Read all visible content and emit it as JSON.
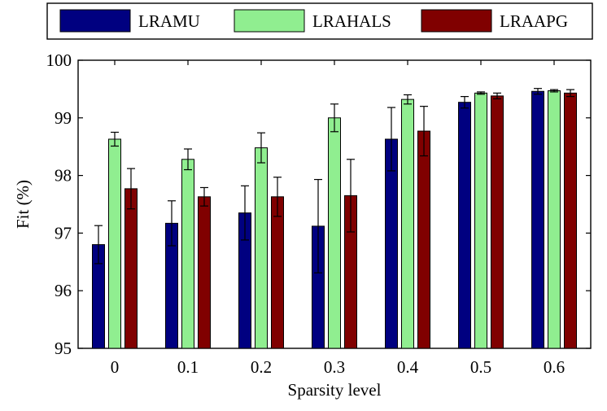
{
  "chart_data": {
    "type": "bar",
    "title": "",
    "xlabel": "Sparsity level",
    "ylabel": "Fit (%)",
    "ylim": [
      95,
      100
    ],
    "yticks": [
      "95",
      "96",
      "97",
      "98",
      "99",
      "100"
    ],
    "categories": [
      "0",
      "0.1",
      "0.2",
      "0.3",
      "0.4",
      "0.5",
      "0.6"
    ],
    "grid": false,
    "legend_position": "top",
    "series": [
      {
        "name": "LRAMU",
        "color": "#000080",
        "values": [
          96.8,
          97.17,
          97.35,
          97.12,
          98.63,
          99.27,
          99.46
        ],
        "errors": [
          0.33,
          0.39,
          0.47,
          0.81,
          0.55,
          0.1,
          0.05
        ]
      },
      {
        "name": "LRAHALS",
        "color": "#90ee90",
        "values": [
          98.63,
          98.28,
          98.48,
          99.0,
          99.32,
          99.43,
          99.47
        ],
        "errors": [
          0.12,
          0.18,
          0.26,
          0.24,
          0.08,
          0.02,
          0.02
        ]
      },
      {
        "name": "LRAAPG",
        "color": "#800000",
        "values": [
          97.77,
          97.63,
          97.63,
          97.65,
          98.77,
          99.38,
          99.43
        ],
        "errors": [
          0.35,
          0.16,
          0.34,
          0.63,
          0.43,
          0.05,
          0.06
        ]
      }
    ]
  }
}
